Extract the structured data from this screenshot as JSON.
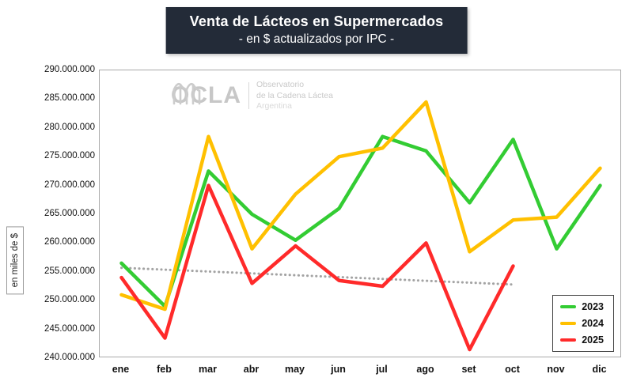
{
  "title": {
    "line1": "Venta de Lácteos en Supermercados",
    "line2": "- en $ actualizados por IPC -"
  },
  "y_axis": {
    "label": "en miles de $",
    "ticks": [
      "290.000.000",
      "285.000.000",
      "280.000.000",
      "275.000.000",
      "270.000.000",
      "265.000.000",
      "260.000.000",
      "255.000.000",
      "250.000.000",
      "245.000.000",
      "240.000.000"
    ]
  },
  "watermark": {
    "brand": "OCLA",
    "line1": "Observatorio",
    "line2": "de la Cadena Láctea",
    "line3": "Argentina"
  },
  "legend": [
    {
      "label": "2023",
      "color": "#33cc33"
    },
    {
      "label": "2024",
      "color": "#ffc000"
    },
    {
      "label": "2025",
      "color": "#ff2a2a"
    }
  ],
  "chart_data": {
    "type": "line",
    "title": "Venta de Lácteos en Supermercados",
    "subtitle": "- en $ actualizados por IPC -",
    "ylabel": "en miles de $",
    "ylim": [
      240000000,
      290000000
    ],
    "ytick_step": 5000000,
    "grid": false,
    "legend_position": "bottom-right",
    "categories": [
      "ene",
      "feb",
      "mar",
      "abr",
      "may",
      "jun",
      "jul",
      "ago",
      "set",
      "oct",
      "nov",
      "dic"
    ],
    "series": [
      {
        "name": "2023",
        "color": "#33cc33",
        "values": [
          256500000,
          249000000,
          272500000,
          265000000,
          260500000,
          266000000,
          278500000,
          276000000,
          267000000,
          278000000,
          259000000,
          270000000
        ]
      },
      {
        "name": "2024",
        "color": "#ffc000",
        "values": [
          251000000,
          248500000,
          278500000,
          259000000,
          268500000,
          275000000,
          276500000,
          284500000,
          258500000,
          264000000,
          264500000,
          273000000
        ]
      },
      {
        "name": "2025",
        "color": "#ff2a2a",
        "values": [
          254000000,
          243500000,
          270000000,
          253000000,
          259500000,
          253500000,
          252500000,
          260000000,
          241500000,
          256000000,
          null,
          null
        ]
      }
    ],
    "trend": {
      "name": "tendencia",
      "color": "#a3a3a3",
      "style": "dotted",
      "from": 255700000,
      "to": 252800000,
      "span": [
        0,
        9
      ]
    }
  }
}
